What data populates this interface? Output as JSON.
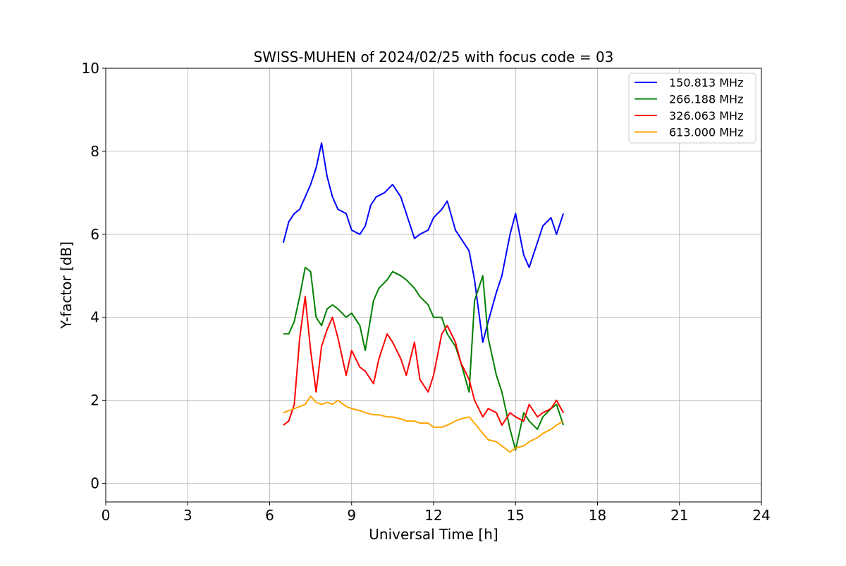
{
  "chart_data": {
    "type": "line",
    "title": "SWISS-MUHEN of 2024/02/25 with focus code = 03",
    "xlabel": "Universal Time [h]",
    "ylabel": "Y-factor [dB]",
    "xlim": [
      0,
      24
    ],
    "ylim": [
      -0.45,
      10
    ],
    "xticks": [
      0,
      3,
      6,
      9,
      12,
      15,
      18,
      21,
      24
    ],
    "yticks": [
      0,
      2,
      4,
      6,
      8,
      10
    ],
    "xtick_labels": [
      "0",
      "3",
      "6",
      "9",
      "12",
      "15",
      "18",
      "21",
      "24"
    ],
    "ytick_labels": [
      "0",
      "2",
      "4",
      "6",
      "8",
      "10"
    ],
    "grid": true,
    "legend_position": "top-right",
    "series": [
      {
        "name": "150.813 MHz",
        "color": "#0000ff",
        "x": [
          6.5,
          6.7,
          6.9,
          7.1,
          7.3,
          7.5,
          7.7,
          7.9,
          8.1,
          8.3,
          8.5,
          8.8,
          9.0,
          9.3,
          9.5,
          9.7,
          9.9,
          10.2,
          10.5,
          10.8,
          11.0,
          11.3,
          11.5,
          11.8,
          12.0,
          12.3,
          12.5,
          12.8,
          13.0,
          13.3,
          13.5,
          13.8,
          14.0,
          14.3,
          14.5,
          14.8,
          15.0,
          15.3,
          15.5,
          15.8,
          16.0,
          16.3,
          16.5,
          16.75
        ],
        "y": [
          5.8,
          6.3,
          6.5,
          6.6,
          6.9,
          7.2,
          7.6,
          8.2,
          7.4,
          6.9,
          6.6,
          6.5,
          6.1,
          6.0,
          6.2,
          6.7,
          6.9,
          7.0,
          7.2,
          6.9,
          6.5,
          5.9,
          6.0,
          6.1,
          6.4,
          6.6,
          6.8,
          6.1,
          5.9,
          5.6,
          4.9,
          3.4,
          3.9,
          4.6,
          5.0,
          6.0,
          6.5,
          5.5,
          5.2,
          5.8,
          6.2,
          6.4,
          6.0,
          6.5
        ]
      },
      {
        "name": "266.188 MHz",
        "color": "#008000",
        "x": [
          6.5,
          6.7,
          6.9,
          7.1,
          7.3,
          7.5,
          7.7,
          7.9,
          8.1,
          8.3,
          8.5,
          8.8,
          9.0,
          9.3,
          9.5,
          9.8,
          10.0,
          10.3,
          10.5,
          10.8,
          11.0,
          11.3,
          11.5,
          11.8,
          12.0,
          12.3,
          12.5,
          12.8,
          13.0,
          13.3,
          13.5,
          13.8,
          14.0,
          14.3,
          14.5,
          14.8,
          15.0,
          15.3,
          15.5,
          15.8,
          16.0,
          16.3,
          16.5,
          16.75
        ],
        "y": [
          3.6,
          3.6,
          3.9,
          4.5,
          5.2,
          5.1,
          4.0,
          3.8,
          4.2,
          4.3,
          4.2,
          4.0,
          4.1,
          3.8,
          3.2,
          4.4,
          4.7,
          4.9,
          5.1,
          5.0,
          4.9,
          4.7,
          4.5,
          4.3,
          4.0,
          4.0,
          3.6,
          3.3,
          2.9,
          2.2,
          4.4,
          5.0,
          3.5,
          2.6,
          2.2,
          1.3,
          0.8,
          1.7,
          1.5,
          1.3,
          1.6,
          1.8,
          1.9,
          1.4
        ]
      },
      {
        "name": "326.063 MHz",
        "color": "#ff0000",
        "x": [
          6.5,
          6.7,
          6.9,
          7.1,
          7.3,
          7.5,
          7.7,
          7.9,
          8.1,
          8.3,
          8.5,
          8.8,
          9.0,
          9.3,
          9.5,
          9.8,
          10.0,
          10.3,
          10.5,
          10.8,
          11.0,
          11.3,
          11.5,
          11.8,
          12.0,
          12.3,
          12.5,
          12.8,
          13.0,
          13.3,
          13.5,
          13.8,
          14.0,
          14.3,
          14.5,
          14.8,
          15.0,
          15.3,
          15.5,
          15.8,
          16.0,
          16.3,
          16.5,
          16.75
        ],
        "y": [
          1.4,
          1.5,
          1.9,
          3.5,
          4.5,
          3.2,
          2.2,
          3.3,
          3.7,
          4.0,
          3.5,
          2.6,
          3.2,
          2.8,
          2.7,
          2.4,
          3.0,
          3.6,
          3.4,
          3.0,
          2.6,
          3.4,
          2.5,
          2.2,
          2.6,
          3.6,
          3.8,
          3.4,
          2.9,
          2.5,
          2.0,
          1.6,
          1.8,
          1.7,
          1.4,
          1.7,
          1.6,
          1.5,
          1.9,
          1.6,
          1.7,
          1.8,
          2.0,
          1.7
        ]
      },
      {
        "name": "613.000 MHz",
        "color": "#ffa500",
        "x": [
          6.5,
          6.7,
          6.9,
          7.1,
          7.3,
          7.5,
          7.7,
          7.9,
          8.1,
          8.3,
          8.5,
          8.8,
          9.0,
          9.3,
          9.5,
          9.8,
          10.0,
          10.3,
          10.5,
          10.8,
          11.0,
          11.3,
          11.5,
          11.8,
          12.0,
          12.3,
          12.5,
          12.8,
          13.0,
          13.3,
          13.5,
          13.8,
          14.0,
          14.3,
          14.5,
          14.8,
          15.0,
          15.3,
          15.5,
          15.8,
          16.0,
          16.3,
          16.5,
          16.75
        ],
        "y": [
          1.7,
          1.75,
          1.8,
          1.85,
          1.9,
          2.1,
          1.95,
          1.9,
          1.95,
          1.9,
          2.0,
          1.85,
          1.8,
          1.75,
          1.7,
          1.65,
          1.65,
          1.6,
          1.6,
          1.55,
          1.5,
          1.5,
          1.45,
          1.45,
          1.35,
          1.35,
          1.4,
          1.5,
          1.55,
          1.6,
          1.45,
          1.2,
          1.05,
          1.0,
          0.9,
          0.75,
          0.85,
          0.9,
          1.0,
          1.1,
          1.2,
          1.3,
          1.4,
          1.5
        ]
      }
    ]
  }
}
